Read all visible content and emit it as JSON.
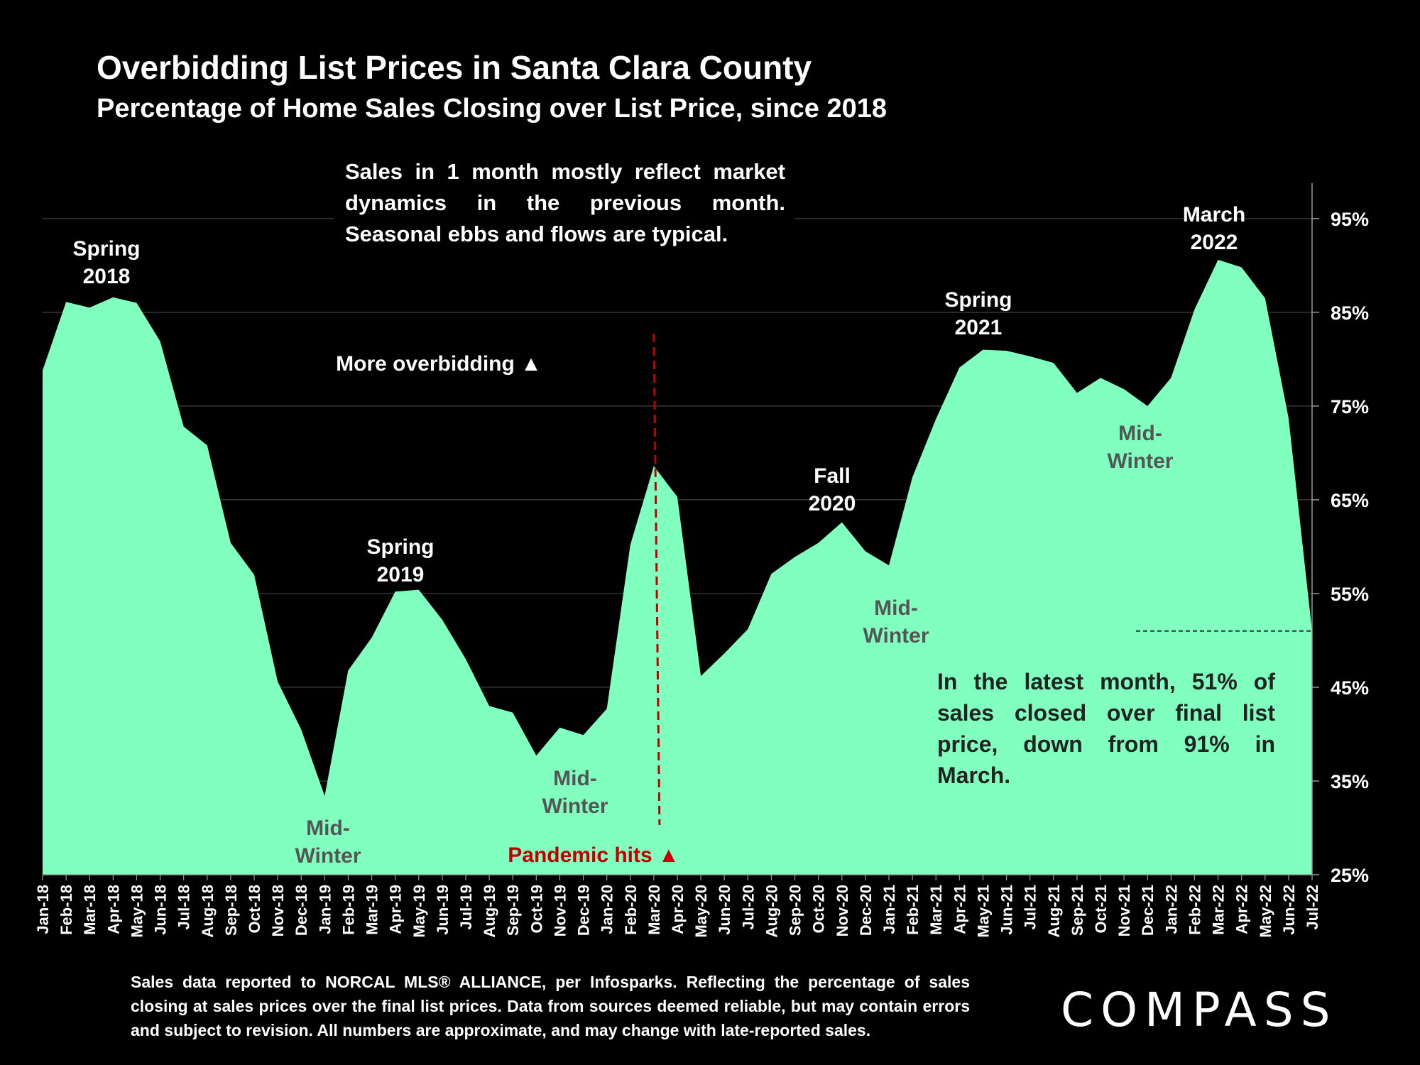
{
  "header": {
    "title": "Overbidding List Prices in Santa Clara County",
    "subtitle": "Percentage of Home Sales Closing over List Price, since 2018"
  },
  "notes": {
    "top": "Sales in 1 month mostly reflect market dynamics in the previous month. Seasonal ebbs and flows are typical.",
    "latest": "In the latest month, 51% of sales closed over final list price, down from 91% in March."
  },
  "footer": {
    "text": "Sales data reported to NORCAL MLS® ALLIANCE, per Infosparks. Reflecting the percentage of sales closing at sales prices over the final list prices. Data from sources deemed reliable, but may contain errors and subject to revision. All numbers are approximate, and may change with late-reported sales."
  },
  "logo": {
    "text": "COMPASS"
  },
  "chart_data": {
    "type": "area",
    "title": "Overbidding List Prices in Santa Clara County",
    "subtitle": "Percentage of Home Sales Closing over List Price, since 2018",
    "categories": [
      "Jan-18",
      "Feb-18",
      "Mar-18",
      "Apr-18",
      "May-18",
      "Jun-18",
      "Jul-18",
      "Aug-18",
      "Sep-18",
      "Oct-18",
      "Nov-18",
      "Dec-18",
      "Jan-19",
      "Feb-19",
      "Mar-19",
      "Apr-19",
      "May-19",
      "Jun-19",
      "Jul-19",
      "Aug-19",
      "Sep-19",
      "Oct-19",
      "Nov-19",
      "Dec-19",
      "Jan-20",
      "Feb-20",
      "Mar-20",
      "Apr-20",
      "May-20",
      "Jun-20",
      "Jul-20",
      "Aug-20",
      "Sep-20",
      "Oct-20",
      "Nov-20",
      "Dec-20",
      "Jan-21",
      "Feb-21",
      "Mar-21",
      "Apr-21",
      "May-21",
      "Jun-21",
      "Jul-21",
      "Aug-21",
      "Sep-21",
      "Oct-21",
      "Nov-21",
      "Dec-21",
      "Jan-22",
      "Feb-22",
      "Mar-22",
      "Apr-22",
      "May-22",
      "Jun-22",
      "Jul-22"
    ],
    "values": [
      78.8,
      86.1,
      85.5,
      86.6,
      86.0,
      81.9,
      72.8,
      70.8,
      60.4,
      57.0,
      45.6,
      40.5,
      33.4,
      46.8,
      50.3,
      55.2,
      55.4,
      52.2,
      48.0,
      43.0,
      42.3,
      37.7,
      40.7,
      39.9,
      42.7,
      60.2,
      68.6,
      65.3,
      46.2,
      48.6,
      51.2,
      57.1,
      58.9,
      60.4,
      62.6,
      59.5,
      58.0,
      67.4,
      73.6,
      79.1,
      81.0,
      80.9,
      80.3,
      79.6,
      76.4,
      78.0,
      76.8,
      75.0,
      78.0,
      85.3,
      90.6,
      89.8,
      86.5,
      73.7,
      51.0
    ],
    "ylim": [
      25,
      99
    ],
    "y_ticks": [
      "95%",
      "85%",
      "75%",
      "65%",
      "55%",
      "45%",
      "35%",
      "25%"
    ],
    "y_tick_values": [
      95,
      85,
      75,
      65,
      55,
      45,
      35,
      25
    ],
    "y_axis_side": "right",
    "grid": true,
    "colors": {
      "fill": "#80FFBE",
      "background": "#000000",
      "pandemic": "#C00000",
      "text_dark": "#555555"
    },
    "annotations": [
      {
        "id": "spring2018",
        "lines": [
          "Spring",
          "2018"
        ],
        "color": "#ffffff"
      },
      {
        "id": "spring2019",
        "lines": [
          "Spring",
          "2019"
        ],
        "color": "#ffffff"
      },
      {
        "id": "fall2020",
        "lines": [
          "Fall",
          "2020"
        ],
        "color": "#ffffff"
      },
      {
        "id": "spring2021",
        "lines": [
          "Spring",
          "2021"
        ],
        "color": "#ffffff"
      },
      {
        "id": "march2022",
        "lines": [
          "March",
          "2022"
        ],
        "color": "#ffffff"
      },
      {
        "id": "midwinter1",
        "lines": [
          "Mid-",
          "Winter"
        ],
        "color": "#555555"
      },
      {
        "id": "midwinter2",
        "lines": [
          "Mid-",
          "Winter"
        ],
        "color": "#555555"
      },
      {
        "id": "midwinter3",
        "lines": [
          "Mid-",
          "Winter"
        ],
        "color": "#555555"
      },
      {
        "id": "midwinter4",
        "lines": [
          "Mid-",
          "Winter"
        ],
        "color": "#555555"
      },
      {
        "id": "more",
        "lines": [
          "More overbidding ▲"
        ],
        "color": "#ffffff"
      },
      {
        "id": "pandemic",
        "lines": [
          "Pandemic hits ▲"
        ],
        "color": "#C00000"
      }
    ],
    "pandemic_marker_x": "Mar-20",
    "latest_reference_value": 51.0
  }
}
